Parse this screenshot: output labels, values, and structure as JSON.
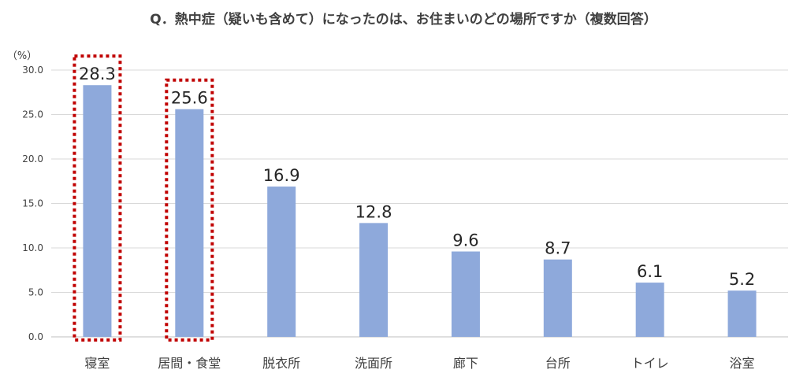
{
  "chart_data": {
    "type": "bar",
    "title": "Q．熱中症（疑いも含めて）になったのは、お住まいのどの場所ですか（複数回答）",
    "ylabel": "（%）",
    "xlabel": "",
    "categories": [
      "寝室",
      "居間・食堂",
      "脱衣所",
      "洗面所",
      "廊下",
      "台所",
      "トイレ",
      "浴室"
    ],
    "values": [
      28.3,
      25.6,
      16.9,
      12.8,
      9.6,
      8.7,
      6.1,
      5.2
    ],
    "value_labels": [
      "28.3",
      "25.6",
      "16.9",
      "12.8",
      "9.6",
      "8.7",
      "6.1",
      "5.2"
    ],
    "ylim": [
      0,
      30
    ],
    "yticks": [
      "0.0",
      "5.0",
      "10.0",
      "15.0",
      "20.0",
      "25.0",
      "30.0"
    ],
    "highlighted_categories": [
      "寝室",
      "居間・食堂"
    ],
    "grid": true,
    "legend": "none",
    "colors": {
      "bar": "#8EA9DB",
      "highlight_border": "#C00000",
      "grid": "#D9D9D9",
      "axis": "#BFBFBF",
      "text": "#404040",
      "value_text": "#262626"
    }
  }
}
